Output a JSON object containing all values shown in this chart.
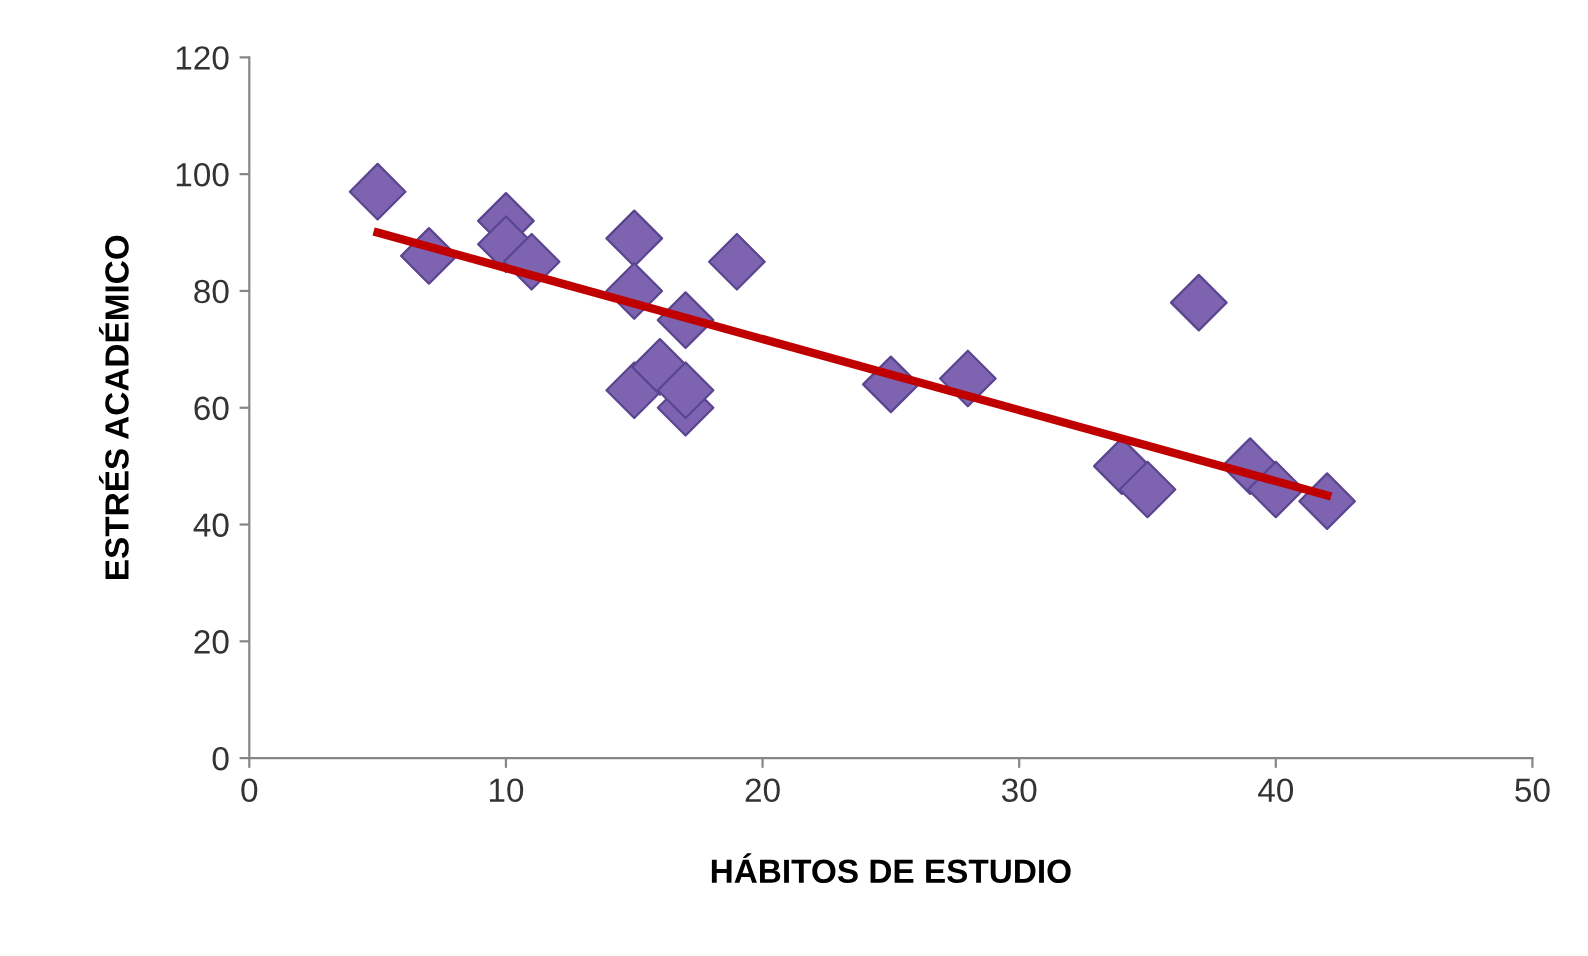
{
  "chart_data": {
    "type": "scatter",
    "xlabel": "HÁBITOS DE ESTUDIO",
    "ylabel": "ESTRÉS ACADÉMICO",
    "xlim": [
      0,
      50
    ],
    "ylim": [
      0,
      120
    ],
    "xticks": [
      0,
      10,
      20,
      30,
      40,
      50
    ],
    "yticks": [
      0,
      20,
      40,
      60,
      80,
      100,
      120
    ],
    "grid": false,
    "marker": "diamond",
    "series": [
      {
        "color": "#7e63b0",
        "x": [
          5,
          7,
          10,
          10,
          11,
          15,
          15,
          15,
          16,
          17,
          17,
          17,
          19,
          25,
          28,
          34,
          35,
          37,
          39,
          40,
          42
        ],
        "values": [
          97,
          86,
          92,
          88,
          85,
          89,
          80,
          63,
          67,
          75,
          60,
          63,
          85,
          64,
          65,
          50,
          46,
          78,
          50,
          46,
          44
        ]
      },
      {
        "type": "line",
        "color": "#c00000",
        "marker": "none",
        "x": [
          5,
          42
        ],
        "values": [
          90,
          45
        ]
      }
    ]
  }
}
